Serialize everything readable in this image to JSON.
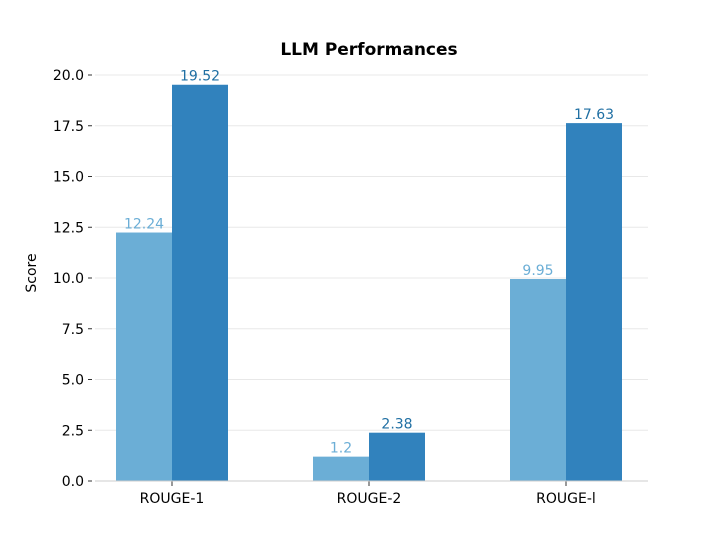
{
  "chart_data": {
    "type": "bar",
    "title": "LLM Performances",
    "xlabel": "",
    "ylabel": "Score",
    "categories": [
      "ROUGE-1",
      "ROUGE-2",
      "ROUGE-l"
    ],
    "series": [
      {
        "values": [
          12.24,
          1.2,
          9.95
        ],
        "color": "#6baed6",
        "label_color": "#6baed6"
      },
      {
        "values": [
          19.52,
          2.38,
          17.63
        ],
        "color": "#3182bd",
        "label_color": "#1f6fa3"
      }
    ],
    "data_labels": [
      [
        "12.24",
        "1.2",
        "9.95"
      ],
      [
        "19.52",
        "2.38",
        "17.63"
      ]
    ],
    "ylim": [
      0,
      20.0
    ],
    "yticks": [
      0,
      2.5,
      5,
      7.5,
      10,
      12.5,
      15,
      17.5,
      20
    ],
    "ytick_labels": [
      "0.0",
      "2.5",
      "5.0",
      "7.5",
      "10.0",
      "12.5",
      "15.0",
      "17.5",
      "20.0"
    ],
    "grid": true,
    "grid_color": "#e8e8e8"
  }
}
